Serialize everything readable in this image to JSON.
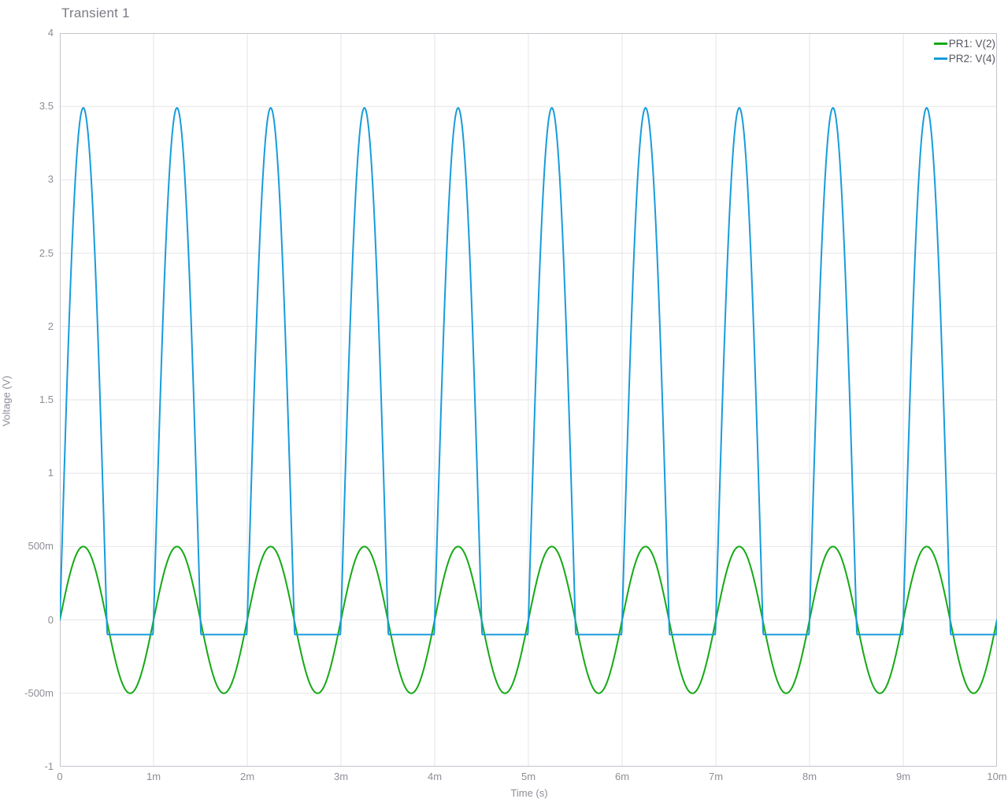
{
  "chart_data": {
    "type": "line",
    "title": "Transient 1",
    "xlabel": "Time (s)",
    "ylabel": "Voltage (V)",
    "xlim": [
      0,
      0.01
    ],
    "ylim": [
      -1,
      4
    ],
    "grid": true,
    "legend_position": "top-right",
    "x_ticks": [
      {
        "value": 0.0,
        "label": "0"
      },
      {
        "value": 0.001,
        "label": "1m"
      },
      {
        "value": 0.002,
        "label": "2m"
      },
      {
        "value": 0.003,
        "label": "3m"
      },
      {
        "value": 0.004,
        "label": "4m"
      },
      {
        "value": 0.005,
        "label": "5m"
      },
      {
        "value": 0.006,
        "label": "6m"
      },
      {
        "value": 0.007,
        "label": "7m"
      },
      {
        "value": 0.008,
        "label": "8m"
      },
      {
        "value": 0.009,
        "label": "9m"
      },
      {
        "value": 0.01,
        "label": "10m"
      }
    ],
    "y_ticks": [
      {
        "value": 4,
        "label": "4"
      },
      {
        "value": 3.5,
        "label": "3.5"
      },
      {
        "value": 3,
        "label": "3"
      },
      {
        "value": 2.5,
        "label": "2.5"
      },
      {
        "value": 2,
        "label": "2"
      },
      {
        "value": 1.5,
        "label": "1.5"
      },
      {
        "value": 1,
        "label": "1"
      },
      {
        "value": 0.5,
        "label": "500m"
      },
      {
        "value": 0,
        "label": "0"
      },
      {
        "value": -0.5,
        "label": "-500m"
      },
      {
        "value": -1,
        "label": "-1"
      }
    ],
    "series": [
      {
        "name": "PR1: V(2)",
        "color": "#15a915",
        "waveform": "sine",
        "amplitude_v": 0.5,
        "frequency_hz": 1000,
        "phase_deg": 0,
        "periods_shown": 10
      },
      {
        "name": "PR2: V(4)",
        "color": "#189cdb",
        "waveform": "clipped-sine",
        "amplitude_v": 3.49,
        "peak_v": 3.49,
        "frequency_hz": 1000,
        "clip_min_v": -0.1,
        "periods_shown": 10
      }
    ]
  },
  "colors": {
    "background": "#ffffff",
    "plot_border": "#c3c3cb",
    "gridline": "#e6e6ea",
    "title_text": "#7b7b86",
    "axis_text": "#8d8d97",
    "legend_text": "#55555f"
  }
}
